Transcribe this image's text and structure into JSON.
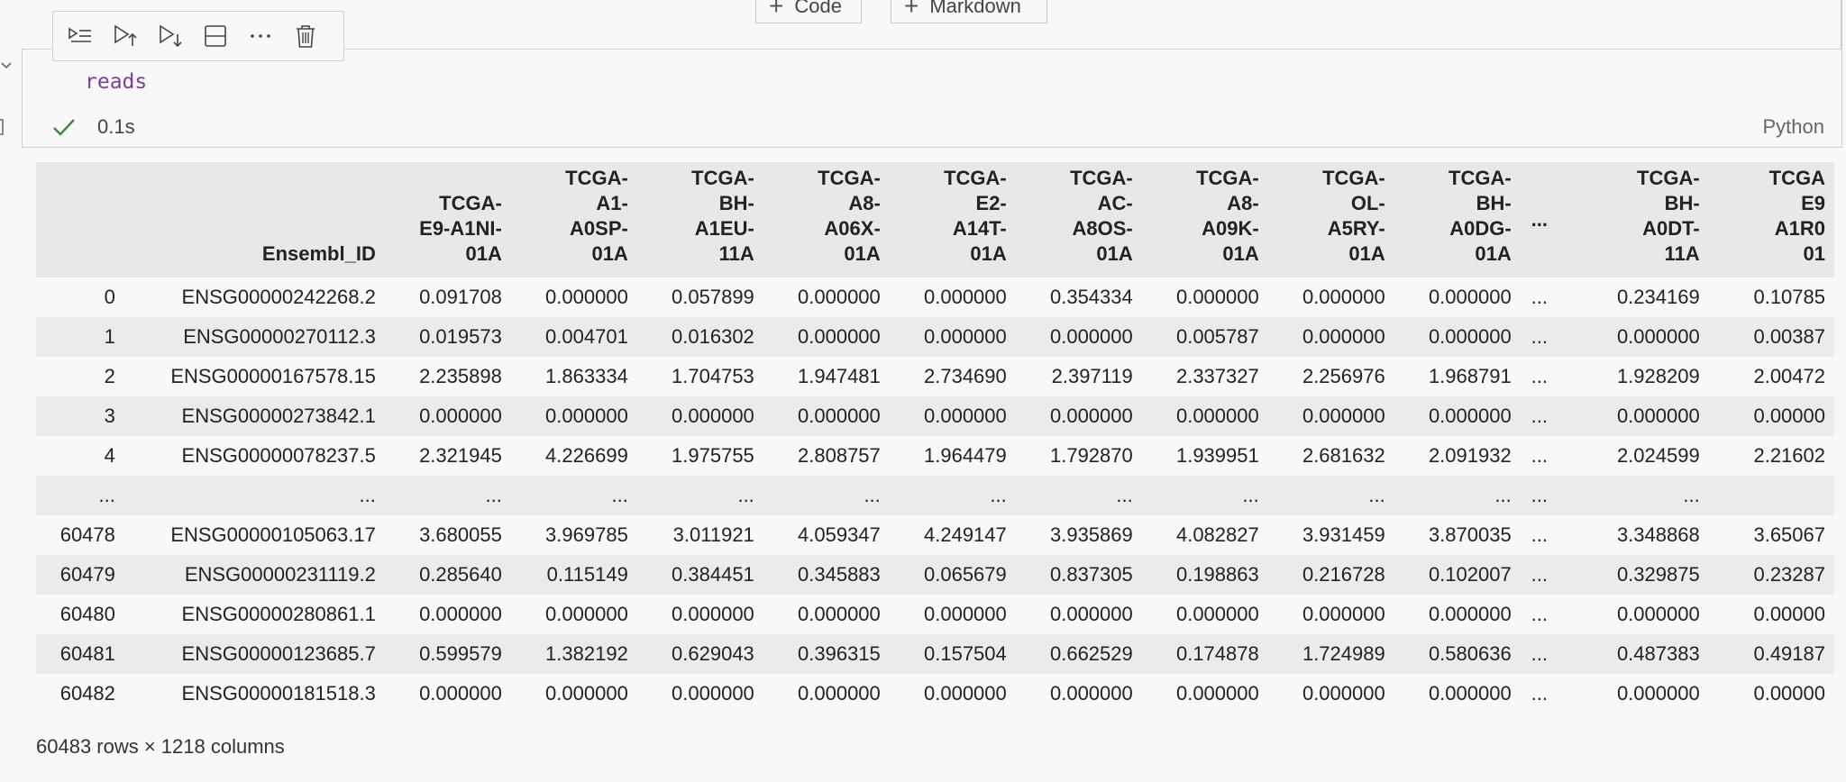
{
  "add_buttons": {
    "code_label": "Code",
    "markdown_label": "Markdown"
  },
  "cell": {
    "code": "reads",
    "exec_time": "0.1s",
    "language": "Python"
  },
  "dataframe": {
    "columns": [
      "",
      "Ensembl_ID",
      "TCGA-E9-A1NI-01A",
      "TCGA-A1-A0SP-01A",
      "TCGA-BH-A1EU-11A",
      "TCGA-A8-A06X-01A",
      "TCGA-E2-A14T-01A",
      "TCGA-AC-A8OS-01A",
      "TCGA-A8-A09K-01A",
      "TCGA-OL-A5RY-01A",
      "TCGA-BH-A0DG-01A",
      "...",
      "TCGA-BH-A0DT-11A",
      "TCGA-E9-A1R0-01"
    ],
    "column_headers_display": [
      "",
      "Ensembl_ID",
      "TCGA-\nE9-A1NI-\n01A",
      "TCGA-\nA1-\nA0SP-\n01A",
      "TCGA-\nBH-\nA1EU-\n11A",
      "TCGA-\nA8-\nA06X-\n01A",
      "TCGA-\nE2-\nA14T-\n01A",
      "TCGA-\nAC-\nA8OS-\n01A",
      "TCGA-\nA8-\nA09K-\n01A",
      "TCGA-\nOL-\nA5RY-\n01A",
      "TCGA-\nBH-\nA0DG-\n01A",
      "...",
      "TCGA-\nBH-\nA0DT-\n11A",
      "TCGA\nE9\nA1R0\n01"
    ],
    "rows": [
      [
        "0",
        "ENSG00000242268.2",
        "0.091708",
        "0.000000",
        "0.057899",
        "0.000000",
        "0.000000",
        "0.354334",
        "0.000000",
        "0.000000",
        "0.000000",
        "...",
        "0.234169",
        "0.10785"
      ],
      [
        "1",
        "ENSG00000270112.3",
        "0.019573",
        "0.004701",
        "0.016302",
        "0.000000",
        "0.000000",
        "0.000000",
        "0.005787",
        "0.000000",
        "0.000000",
        "...",
        "0.000000",
        "0.00387"
      ],
      [
        "2",
        "ENSG00000167578.15",
        "2.235898",
        "1.863334",
        "1.704753",
        "1.947481",
        "2.734690",
        "2.397119",
        "2.337327",
        "2.256976",
        "1.968791",
        "...",
        "1.928209",
        "2.00472"
      ],
      [
        "3",
        "ENSG00000273842.1",
        "0.000000",
        "0.000000",
        "0.000000",
        "0.000000",
        "0.000000",
        "0.000000",
        "0.000000",
        "0.000000",
        "0.000000",
        "...",
        "0.000000",
        "0.00000"
      ],
      [
        "4",
        "ENSG00000078237.5",
        "2.321945",
        "4.226699",
        "1.975755",
        "2.808757",
        "1.964479",
        "1.792870",
        "1.939951",
        "2.681632",
        "2.091932",
        "...",
        "2.024599",
        "2.21602"
      ],
      [
        "...",
        "...",
        "...",
        "...",
        "...",
        "...",
        "...",
        "...",
        "...",
        "...",
        "...",
        "...",
        "...",
        ""
      ],
      [
        "60478",
        "ENSG00000105063.17",
        "3.680055",
        "3.969785",
        "3.011921",
        "4.059347",
        "4.249147",
        "3.935869",
        "4.082827",
        "3.931459",
        "3.870035",
        "...",
        "3.348868",
        "3.65067"
      ],
      [
        "60479",
        "ENSG00000231119.2",
        "0.285640",
        "0.115149",
        "0.384451",
        "0.345883",
        "0.065679",
        "0.837305",
        "0.198863",
        "0.216728",
        "0.102007",
        "...",
        "0.329875",
        "0.23287"
      ],
      [
        "60480",
        "ENSG00000280861.1",
        "0.000000",
        "0.000000",
        "0.000000",
        "0.000000",
        "0.000000",
        "0.000000",
        "0.000000",
        "0.000000",
        "0.000000",
        "...",
        "0.000000",
        "0.00000"
      ],
      [
        "60481",
        "ENSG00000123685.7",
        "0.599579",
        "1.382192",
        "0.629043",
        "0.396315",
        "0.157504",
        "0.662529",
        "0.174878",
        "1.724989",
        "0.580636",
        "...",
        "0.487383",
        "0.49187"
      ],
      [
        "60482",
        "ENSG00000181518.3",
        "0.000000",
        "0.000000",
        "0.000000",
        "0.000000",
        "0.000000",
        "0.000000",
        "0.000000",
        "0.000000",
        "0.000000",
        "...",
        "0.000000",
        "0.00000"
      ]
    ],
    "shape_note": "60483 rows × 1218 columns"
  }
}
